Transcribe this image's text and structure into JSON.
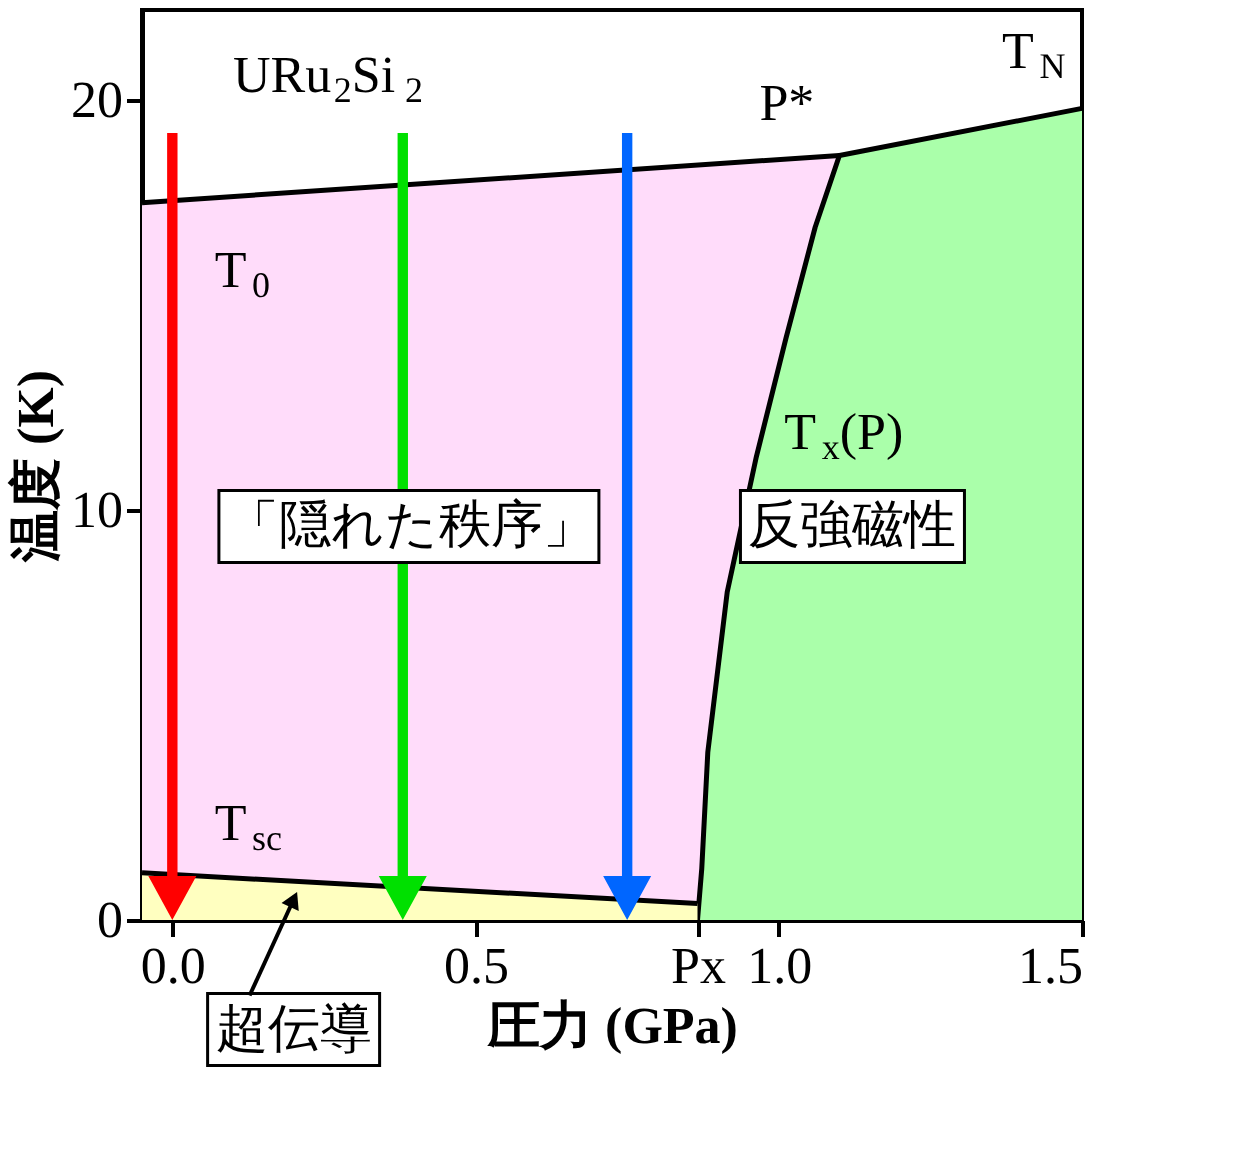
{
  "chart_data": {
    "type": "area",
    "xlabel": "圧力 (GPa)",
    "ylabel": "温度 (K)",
    "xlim": [
      -0.05,
      1.5
    ],
    "ylim": [
      0,
      22.2
    ],
    "xticks": [
      {
        "value": 0,
        "label": "0.0"
      },
      {
        "value": 0.5,
        "label": "0.5"
      },
      {
        "value": 0.866,
        "label": "Px"
      },
      {
        "value": 1,
        "label": "1.0"
      },
      {
        "value": 1.5,
        "label": "1.5"
      }
    ],
    "yticks": [
      0,
      10,
      20
    ],
    "grid": false,
    "series": [
      {
        "color": "#ffdcfa",
        "x": [
          -0.05,
          1.1
        ],
        "values": [
          17.5,
          18.65
        ]
      },
      {
        "color": "#aaffaa",
        "x": [
          0.866,
          0.873,
          0.883,
          0.915,
          0.963,
          1.012,
          1.06,
          1.1,
          1.5
        ],
        "values": [
          0,
          1.25,
          4.1,
          8,
          11.3,
          14.2,
          16.9,
          18.65,
          19.8
        ]
      },
      {
        "color": "#ffffc0",
        "x": [
          -0.05,
          0.866
        ],
        "values": [
          1.15,
          0.4
        ]
      }
    ],
    "annotations": [
      "URu$_{2}$Si$_{2}$",
      {
        "text": "T$_{0}$",
        "x": 0.05,
        "y": 17.6
      },
      {
        "text": "T$_{N}$",
        "x": 1.5,
        "y": 19.8
      },
      {
        "text": "P*",
        "x": 1.1,
        "y": 18.65
      },
      {
        "text": "T$_{x}$(P)",
        "x": 0.963,
        "y": 11.3
      },
      {
        "text": "T$_{sc}$",
        "x": 0.05,
        "y": 1.07
      },
      "「隠れた秩序」",
      "反強磁性",
      "超伝導"
    ]
  }
}
